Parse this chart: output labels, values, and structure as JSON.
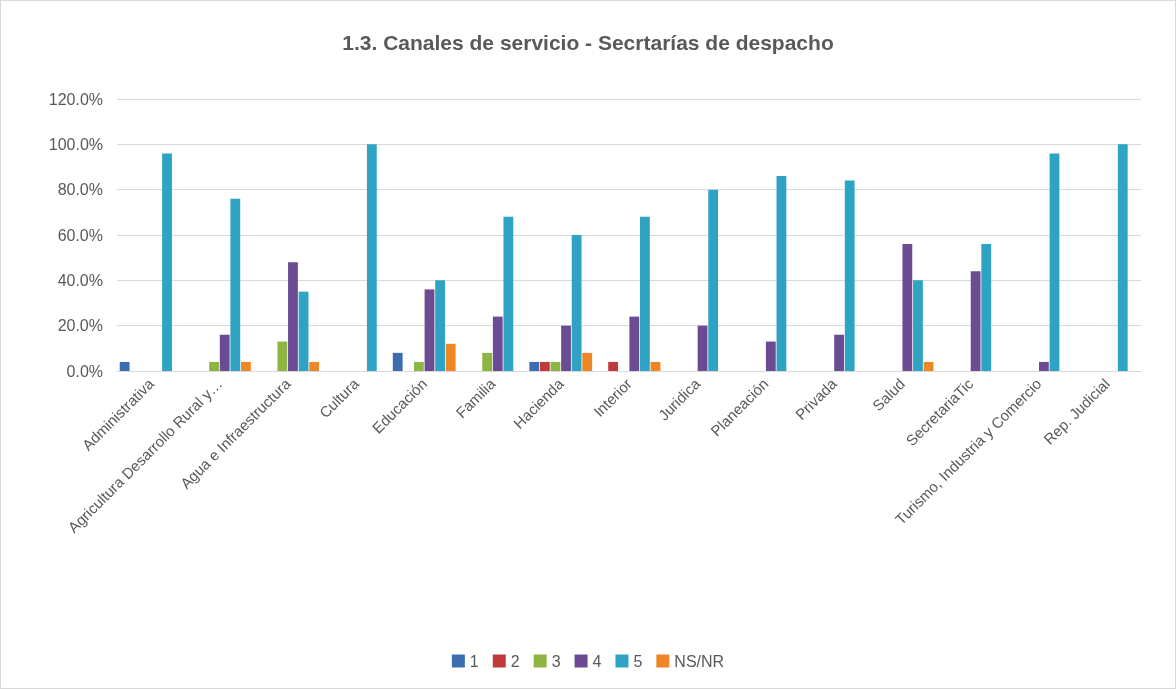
{
  "chart_data": {
    "type": "bar",
    "title": "1.3. Canales de servicio - Secrtarías de despacho",
    "categories": [
      "Administrativa",
      "Agricultura Desarrollo Rural y…",
      "Agua e Infraestructura",
      "Cultura",
      "Educación",
      "Familia",
      "Hacienda",
      "Interior",
      "Juridica",
      "Planeación",
      "Privada",
      "Salud",
      "SecretariaTic",
      "Turismo, Industria y Comercio",
      "Rep. Judicial"
    ],
    "series": [
      {
        "name": "1",
        "color": "#3c6db0",
        "values": [
          4,
          null,
          null,
          null,
          8,
          null,
          4,
          null,
          null,
          null,
          null,
          null,
          null,
          null,
          null
        ]
      },
      {
        "name": "2",
        "color": "#c0393b",
        "values": [
          null,
          null,
          null,
          null,
          null,
          null,
          4,
          4,
          null,
          null,
          null,
          null,
          null,
          null,
          null
        ]
      },
      {
        "name": "3",
        "color": "#8db543",
        "values": [
          null,
          4,
          13,
          null,
          4,
          8,
          4,
          null,
          null,
          null,
          null,
          null,
          null,
          null,
          null
        ]
      },
      {
        "name": "4",
        "color": "#6b4c93",
        "values": [
          null,
          16,
          48,
          null,
          36,
          24,
          20,
          24,
          20,
          13,
          16,
          56,
          44,
          4,
          null
        ]
      },
      {
        "name": "5",
        "color": "#2ea3c3",
        "values": [
          96,
          76,
          35,
          100,
          40,
          68,
          60,
          68,
          80,
          86,
          84,
          40,
          56,
          96,
          100
        ]
      },
      {
        "name": "NS/NR",
        "color": "#ed8624",
        "values": [
          null,
          4,
          4,
          null,
          12,
          null,
          8,
          4,
          null,
          null,
          null,
          4,
          null,
          null,
          null
        ]
      }
    ],
    "ylim": [
      0,
      120
    ],
    "yticks": [
      {
        "value": 0,
        "label": "0.0%"
      },
      {
        "value": 20,
        "label": "20.0%"
      },
      {
        "value": 40,
        "label": "40.0%"
      },
      {
        "value": 60,
        "label": "60.0%"
      },
      {
        "value": 80,
        "label": "80.0%"
      },
      {
        "value": 100,
        "label": "100.0%"
      },
      {
        "value": 120,
        "label": "120.0%"
      }
    ],
    "grid": "y",
    "legend": "bottom"
  }
}
